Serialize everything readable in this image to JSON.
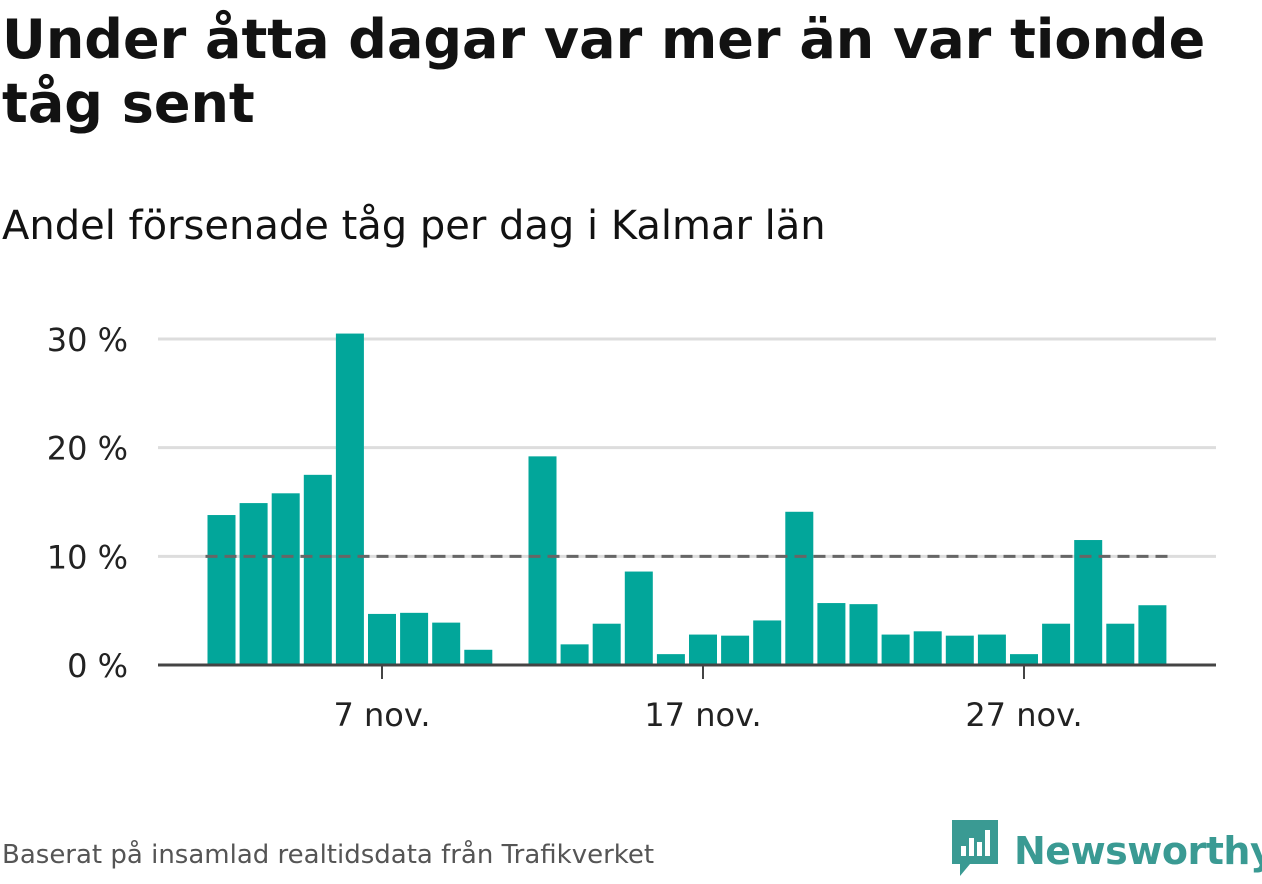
{
  "title": "Under åtta dagar var mer än var tionde tåg sent",
  "subtitle": "Andel försenade tåg per dag i Kalmar län",
  "source": "Baserat på insamlad realtidsdata från Trafikverket",
  "logo": {
    "text": "Newsworthy",
    "icon": "newsworthy-logo-icon",
    "color": "#3a9a93"
  },
  "colors": {
    "bar": "#02a69a",
    "grid": "#dddddd",
    "axis": "#444444",
    "reference_line": "#666666",
    "text": "#222222"
  },
  "chart_data": {
    "type": "bar",
    "x": [
      "2019-11-02",
      "2019-11-03",
      "2019-11-04",
      "2019-11-05",
      "2019-11-06",
      "2019-11-07",
      "2019-11-08",
      "2019-11-09",
      "2019-11-10",
      "2019-11-11",
      "2019-11-12",
      "2019-11-13",
      "2019-11-14",
      "2019-11-15",
      "2019-11-16",
      "2019-11-17",
      "2019-11-18",
      "2019-11-19",
      "2019-11-20",
      "2019-11-21",
      "2019-11-22",
      "2019-11-23",
      "2019-11-24",
      "2019-11-25",
      "2019-11-26",
      "2019-11-27",
      "2019-11-28",
      "2019-11-29",
      "2019-11-30",
      "2019-12-01"
    ],
    "values": [
      13.8,
      14.9,
      15.8,
      17.5,
      30.5,
      4.7,
      4.8,
      3.9,
      1.4,
      null,
      19.2,
      1.9,
      3.8,
      8.6,
      1.0,
      2.8,
      2.7,
      4.1,
      14.1,
      5.7,
      5.6,
      2.8,
      3.1,
      2.7,
      2.8,
      1.0,
      3.8,
      11.5,
      3.8,
      5.5
    ],
    "xticks": [
      {
        "x": "2019-11-07",
        "label": "7 nov."
      },
      {
        "x": "2019-11-17",
        "label": "17 nov."
      },
      {
        "x": "2019-11-27",
        "label": "27 nov."
      }
    ],
    "yticks": [
      {
        "value": 0,
        "label": "0 %"
      },
      {
        "value": 10,
        "label": "10 %"
      },
      {
        "value": 20,
        "label": "20 %"
      },
      {
        "value": 30,
        "label": "30 %"
      }
    ],
    "ylim": [
      0,
      30
    ],
    "reference_line": {
      "value": 10,
      "style": "dashed"
    },
    "grid": true
  }
}
